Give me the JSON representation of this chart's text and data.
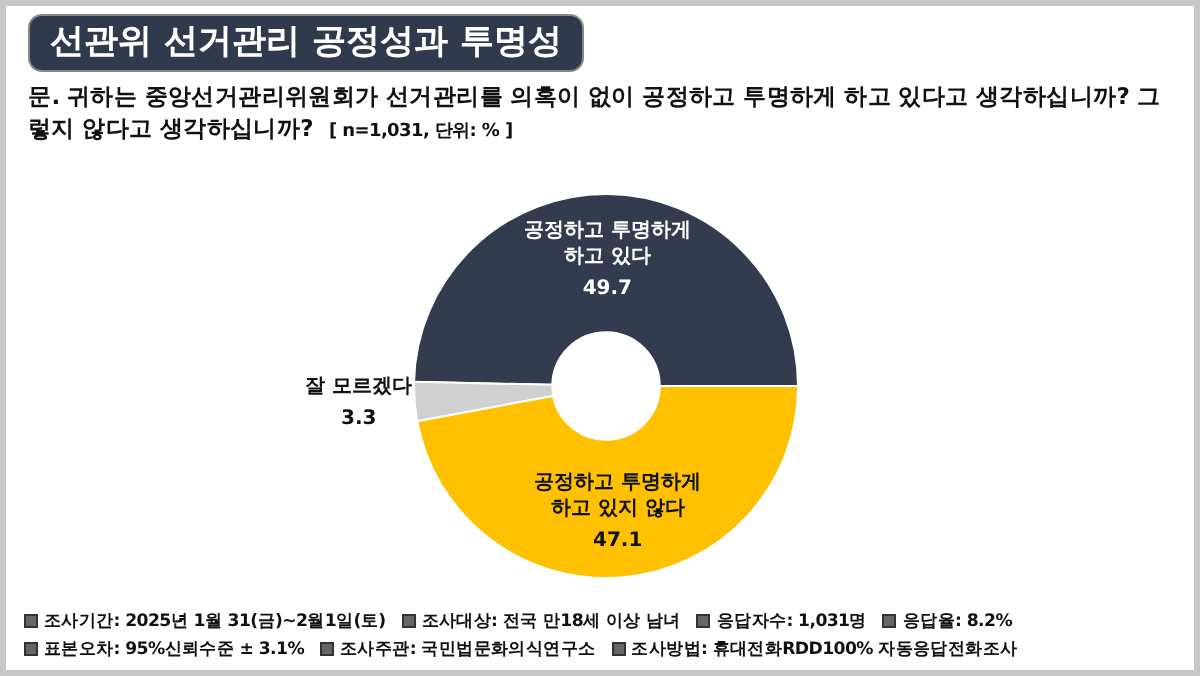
{
  "chart_data": {
    "type": "donut",
    "title": "선관위 선거관리 공정성과 투명성",
    "subtitle": "문. 귀하는 중앙선거관리위원회가 선거관리를 의혹이 없이 공정하고 투명하게 하고 있다고 생각하십니까? 그렇지 않다고 생각하십니까?",
    "categories": [
      "공정하고 투명하게 하고 있다",
      "잘 모르겠다",
      "공정하고 투명하게 하고 있지 않다"
    ],
    "values": [
      49.7,
      3.3,
      47.1
    ],
    "colors": [
      "#323c4e",
      "#d0d0d0",
      "#ffc000"
    ],
    "data_labels": true,
    "annotations": [
      "[ n=1,031, 단위: % ]",
      "조사기간: 2025년 1월 31(금)~2월1일(토)",
      "조사대상: 전국 만18세 이상 남녀",
      "응답자수: 1,031명",
      "응답율: 8.2%",
      "표본오차: 95%신뢰수준 ± 3.1%",
      "조사주관: 국민법문화의식연구소",
      "조사방법: 휴대전화RDD100% 자동응답전화조사"
    ]
  }
}
